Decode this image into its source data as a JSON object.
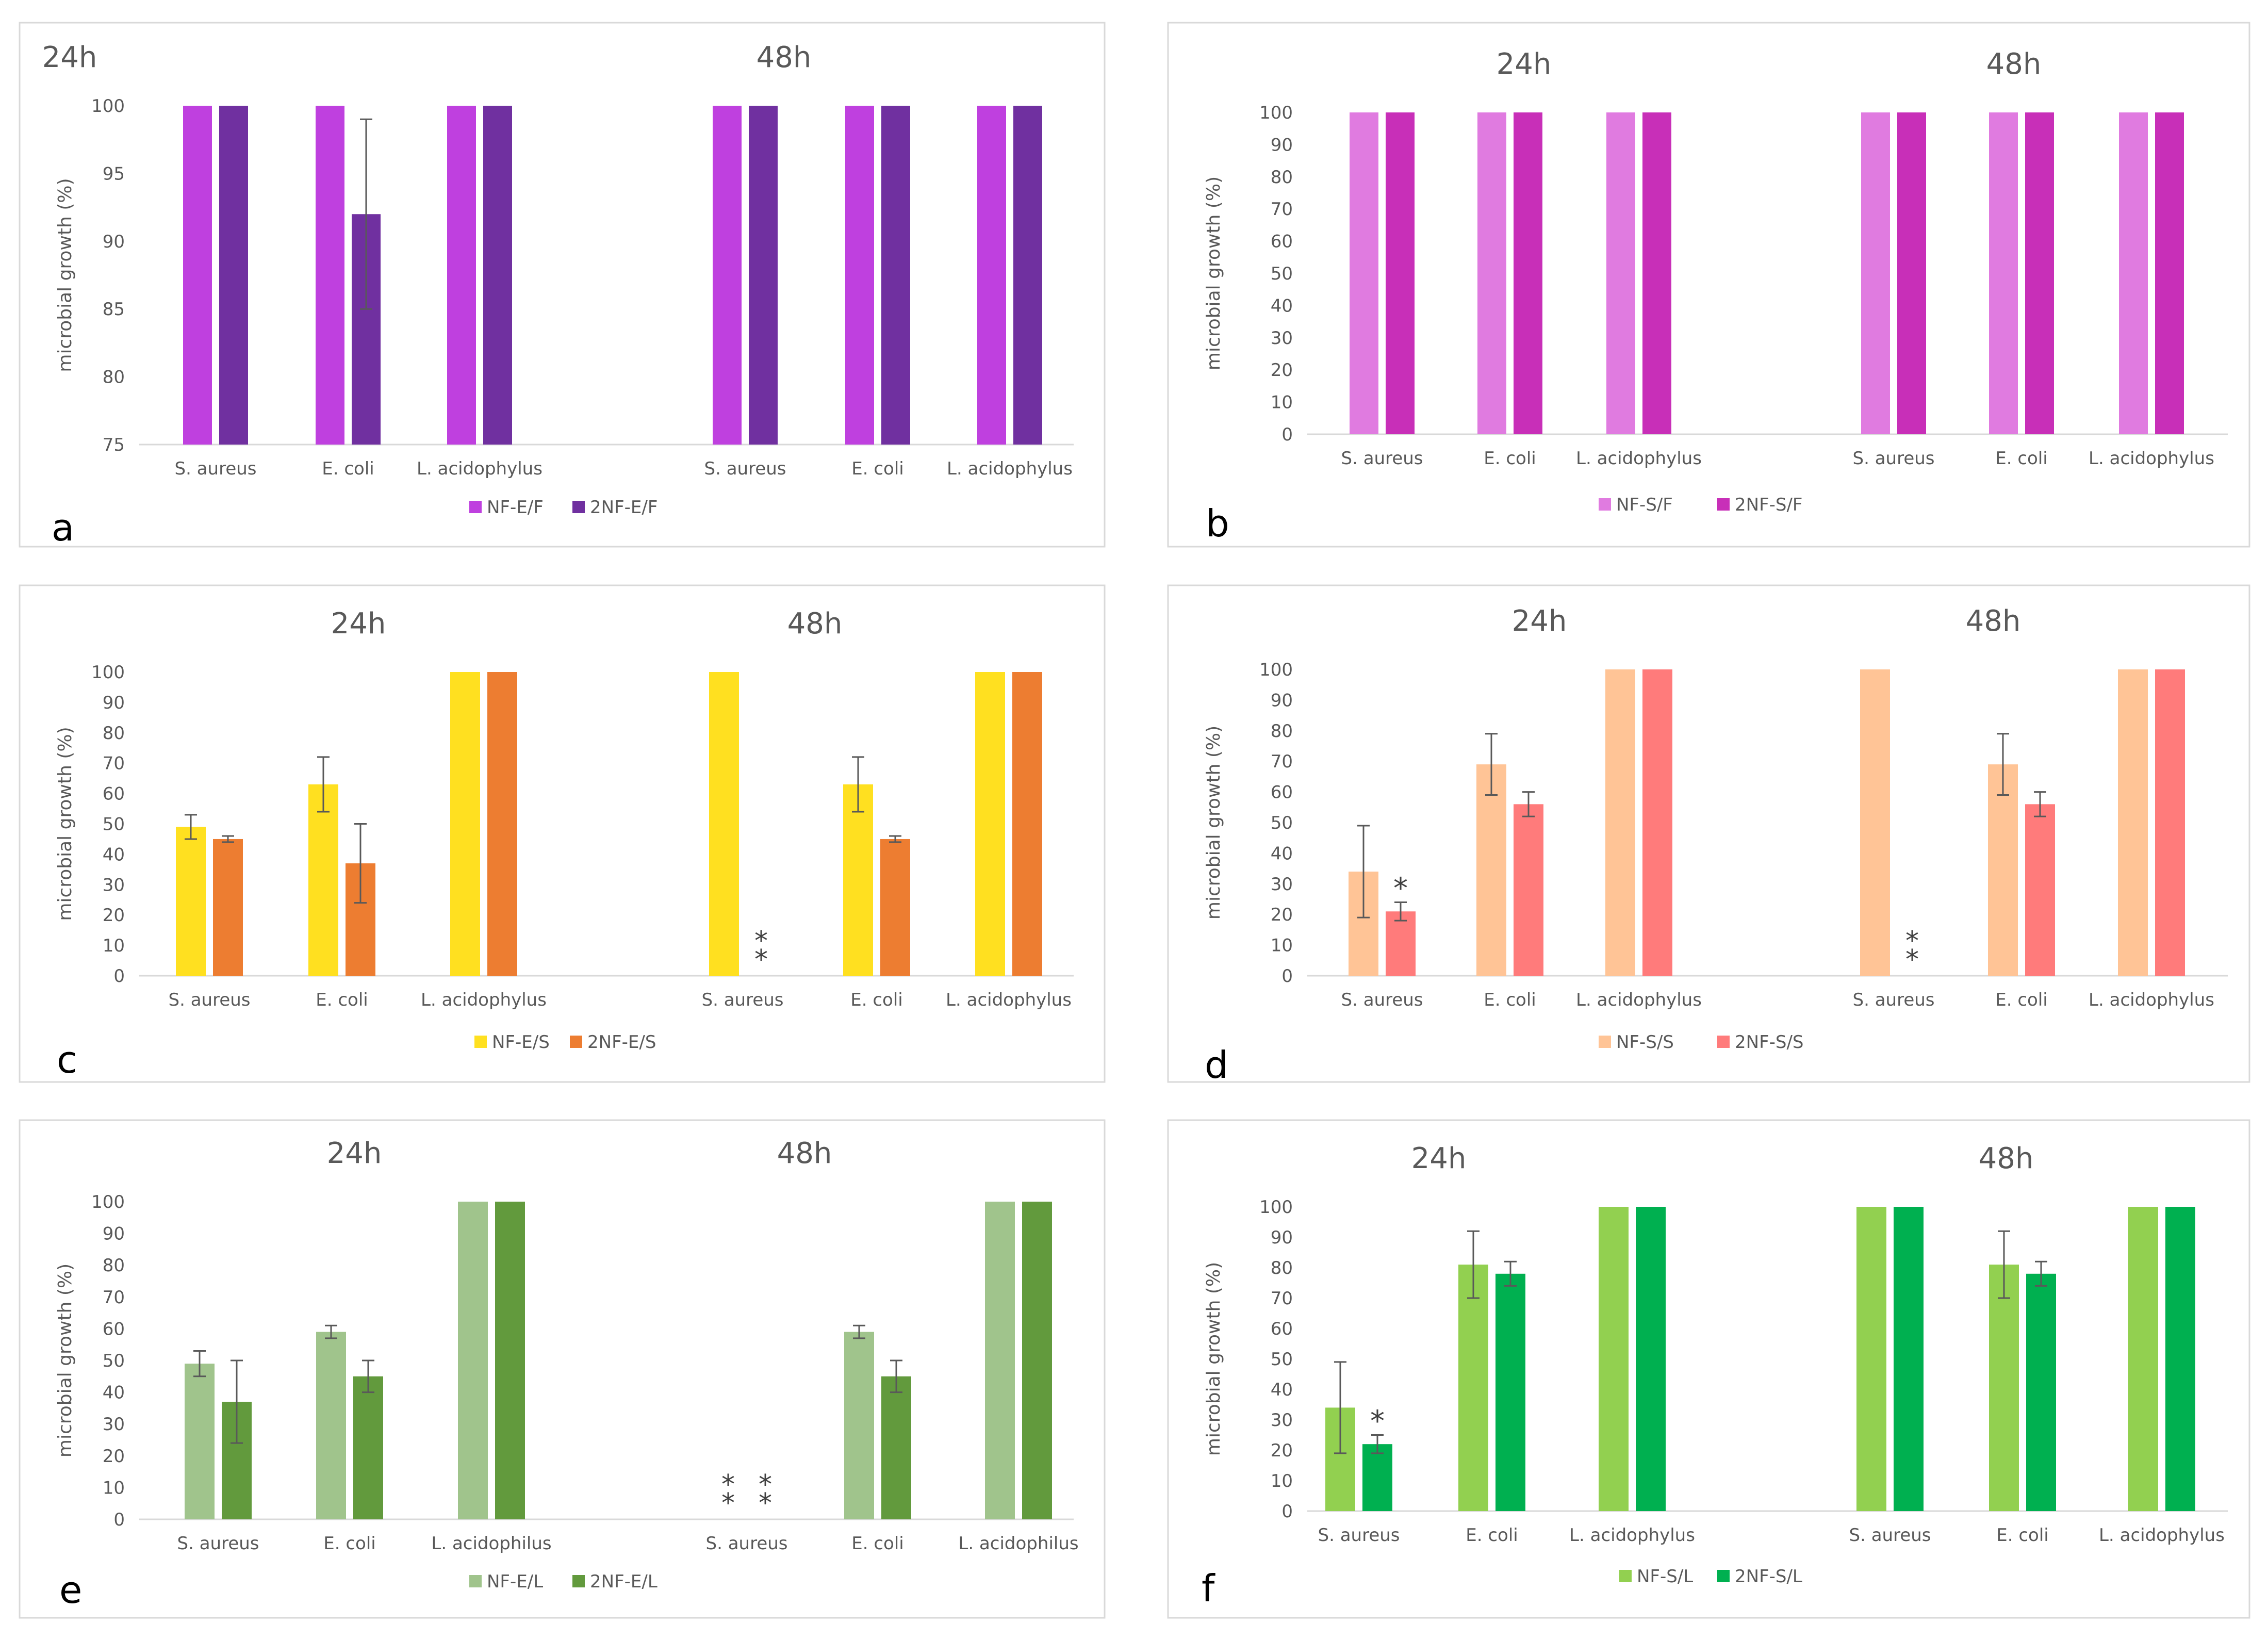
{
  "chart_data": [
    {
      "panel": "a",
      "type": "bar",
      "ylabel": "microbial growth (%)",
      "ylim": [
        75,
        100
      ],
      "yticks": [
        75,
        80,
        85,
        90,
        95,
        100
      ],
      "groups": [
        {
          "title": "24h",
          "categories": [
            "S. aureus",
            "E. coli",
            "L. acidophylus"
          ],
          "series": [
            {
              "name": "NF-E/F",
              "values": [
                100,
                100,
                100
              ],
              "err": [
                0,
                0,
                0
              ]
            },
            {
              "name": "2NF-E/F",
              "values": [
                100,
                92,
                100
              ],
              "err": [
                0,
                7,
                0
              ]
            }
          ],
          "markers": [
            [
              "",
              ""
            ],
            [
              "",
              ""
            ],
            [
              "",
              ""
            ]
          ]
        },
        {
          "title": "48h",
          "categories": [
            "S. aureus",
            "E. coli",
            "L. acidophylus"
          ],
          "series": [
            {
              "name": "NF-E/F",
              "values": [
                100,
                100,
                100
              ],
              "err": [
                0,
                0,
                0
              ]
            },
            {
              "name": "2NF-E/F",
              "values": [
                100,
                100,
                100
              ],
              "err": [
                0,
                0,
                0
              ]
            }
          ],
          "markers": [
            [
              "",
              ""
            ],
            [
              "",
              ""
            ],
            [
              "",
              ""
            ]
          ]
        }
      ],
      "legend": [
        "NF-E/F",
        "2NF-E/F"
      ],
      "colors": [
        "#BF40DF",
        "#7030A0"
      ]
    },
    {
      "panel": "b",
      "type": "bar",
      "ylabel": "microbial growth (%)",
      "ylim": [
        0,
        100
      ],
      "yticks": [
        0,
        10,
        20,
        30,
        40,
        50,
        60,
        70,
        80,
        90,
        100
      ],
      "groups": [
        {
          "title": "24h",
          "categories": [
            "S. aureus",
            "E. coli",
            "L. acidophylus"
          ],
          "series": [
            {
              "name": "NF-S/F",
              "values": [
                100,
                100,
                100
              ],
              "err": [
                0,
                0,
                0
              ]
            },
            {
              "name": "2NF-S/F",
              "values": [
                100,
                100,
                100
              ],
              "err": [
                0,
                0,
                0
              ]
            }
          ],
          "markers": [
            [
              "",
              ""
            ],
            [
              "",
              ""
            ],
            [
              "",
              ""
            ]
          ]
        },
        {
          "title": "48h",
          "categories": [
            "S. aureus",
            "E. coli",
            "L. acidophylus"
          ],
          "series": [
            {
              "name": "NF-S/F",
              "values": [
                100,
                100,
                100
              ],
              "err": [
                0,
                0,
                0
              ]
            },
            {
              "name": "2NF-S/F",
              "values": [
                100,
                100,
                100
              ],
              "err": [
                0,
                0,
                0
              ]
            }
          ],
          "markers": [
            [
              "",
              ""
            ],
            [
              "",
              ""
            ],
            [
              "",
              ""
            ]
          ]
        }
      ],
      "legend": [
        "NF-S/F",
        "2NF-S/F"
      ],
      "colors": [
        "#E07BE0",
        "#C82FB8"
      ]
    },
    {
      "panel": "c",
      "type": "bar",
      "ylabel": "microbial growth (%)",
      "ylim": [
        0,
        100
      ],
      "yticks": [
        0,
        10,
        20,
        30,
        40,
        50,
        60,
        70,
        80,
        90,
        100
      ],
      "groups": [
        {
          "title": "24h",
          "categories": [
            "S. aureus",
            "E. coli",
            "L. acidophylus"
          ],
          "series": [
            {
              "name": "NF-E/S",
              "values": [
                49,
                63,
                100
              ],
              "err": [
                4,
                9,
                0
              ]
            },
            {
              "name": "2NF-E/S",
              "values": [
                45,
                37,
                100
              ],
              "err": [
                1,
                13,
                0
              ]
            }
          ],
          "markers": [
            [
              "",
              ""
            ],
            [
              "",
              ""
            ],
            [
              "",
              ""
            ]
          ]
        },
        {
          "title": "48h",
          "categories": [
            "S. aureus",
            "E. coli",
            "L. acidophylus"
          ],
          "series": [
            {
              "name": "NF-E/S",
              "values": [
                100,
                63,
                100
              ],
              "err": [
                0,
                9,
                0
              ]
            },
            {
              "name": "2NF-E/S",
              "values": [
                0,
                45,
                100
              ],
              "err": [
                0,
                1,
                0
              ]
            }
          ],
          "markers": [
            [
              "",
              "**"
            ],
            [
              "",
              ""
            ],
            [
              "",
              ""
            ]
          ]
        }
      ],
      "legend": [
        "NF-E/S",
        "2NF-E/S"
      ],
      "colors": [
        "#FFE020",
        "#ED7D31"
      ]
    },
    {
      "panel": "d",
      "type": "bar",
      "ylabel": "microbial growth (%)",
      "ylim": [
        0,
        100
      ],
      "yticks": [
        0,
        10,
        20,
        30,
        40,
        50,
        60,
        70,
        80,
        90,
        100
      ],
      "groups": [
        {
          "title": "24h",
          "categories": [
            "S. aureus",
            "E. coli",
            "L. acidophylus"
          ],
          "series": [
            {
              "name": "NF-S/S",
              "values": [
                34,
                69,
                100
              ],
              "err": [
                15,
                10,
                0
              ]
            },
            {
              "name": "2NF-S/S",
              "values": [
                21,
                56,
                100
              ],
              "err": [
                3,
                4,
                0
              ]
            }
          ],
          "markers": [
            [
              "",
              "*"
            ],
            [
              "",
              ""
            ],
            [
              "",
              ""
            ]
          ]
        },
        {
          "title": "48h",
          "categories": [
            "S. aureus",
            "E. coli",
            "L. acidophylus"
          ],
          "series": [
            {
              "name": "NF-S/S",
              "values": [
                100,
                69,
                100
              ],
              "err": [
                0,
                10,
                0
              ]
            },
            {
              "name": "2NF-S/S",
              "values": [
                0,
                56,
                100
              ],
              "err": [
                0,
                4,
                0
              ]
            }
          ],
          "markers": [
            [
              "",
              "**"
            ],
            [
              "",
              ""
            ],
            [
              "",
              ""
            ]
          ]
        }
      ],
      "legend": [
        "NF-S/S",
        "2NF-S/S"
      ],
      "colors": [
        "#FFC496",
        "#FF7B7B"
      ]
    },
    {
      "panel": "e",
      "type": "bar",
      "ylabel": "microbial growth (%)",
      "ylim": [
        0,
        100
      ],
      "yticks": [
        0,
        10,
        20,
        30,
        40,
        50,
        60,
        70,
        80,
        90,
        100
      ],
      "groups": [
        {
          "title": "24h",
          "categories": [
            "S. aureus",
            "E. coli",
            "L. acidophilus"
          ],
          "series": [
            {
              "name": "NF-E/L",
              "values": [
                49,
                59,
                100
              ],
              "err": [
                4,
                2,
                0
              ]
            },
            {
              "name": "2NF-E/L",
              "values": [
                37,
                45,
                100
              ],
              "err": [
                13,
                5,
                0
              ]
            }
          ],
          "markers": [
            [
              "",
              ""
            ],
            [
              "",
              ""
            ],
            [
              "",
              ""
            ]
          ]
        },
        {
          "title": "48h",
          "categories": [
            "S. aureus",
            "E. coli",
            "L. acidophilus"
          ],
          "series": [
            {
              "name": "NF-E/L",
              "values": [
                0,
                59,
                100
              ],
              "err": [
                0,
                2,
                0
              ]
            },
            {
              "name": "2NF-E/L",
              "values": [
                0,
                45,
                100
              ],
              "err": [
                0,
                5,
                0
              ]
            }
          ],
          "markers": [
            [
              "**",
              "**"
            ],
            [
              "",
              ""
            ],
            [
              "",
              ""
            ]
          ]
        }
      ],
      "legend": [
        "NF-E/L",
        "2NF-E/L"
      ],
      "colors": [
        "#A0C48C",
        "#629A3D"
      ]
    },
    {
      "panel": "f",
      "type": "bar",
      "ylabel": "microbial growth (%)",
      "ylim": [
        0,
        100
      ],
      "yticks": [
        0,
        10,
        20,
        30,
        40,
        50,
        60,
        70,
        80,
        90,
        100
      ],
      "groups": [
        {
          "title": "24h",
          "categories": [
            "S. aureus",
            "E. coli",
            "L. acidophylus"
          ],
          "series": [
            {
              "name": "NF-S/L",
              "values": [
                34,
                81,
                100
              ],
              "err": [
                15,
                11,
                0
              ]
            },
            {
              "name": "2NF-S/L",
              "values": [
                22,
                78,
                100
              ],
              "err": [
                3,
                4,
                0
              ]
            }
          ],
          "markers": [
            [
              "",
              "*"
            ],
            [
              "",
              ""
            ],
            [
              "",
              ""
            ]
          ]
        },
        {
          "title": "48h",
          "categories": [
            "S. aureus",
            "E. coli",
            "L. acidophylus"
          ],
          "series": [
            {
              "name": "NF-S/L",
              "values": [
                100,
                81,
                100
              ],
              "err": [
                0,
                11,
                0
              ]
            },
            {
              "name": "2NF-S/L",
              "values": [
                100,
                78,
                100
              ],
              "err": [
                0,
                4,
                0
              ]
            }
          ],
          "markers": [
            [
              "",
              ""
            ],
            [
              "",
              ""
            ],
            [
              "",
              ""
            ]
          ]
        }
      ],
      "legend": [
        "NF-S/L",
        "2NF-S/L"
      ],
      "colors": [
        "#92D050",
        "#00B050"
      ]
    }
  ]
}
